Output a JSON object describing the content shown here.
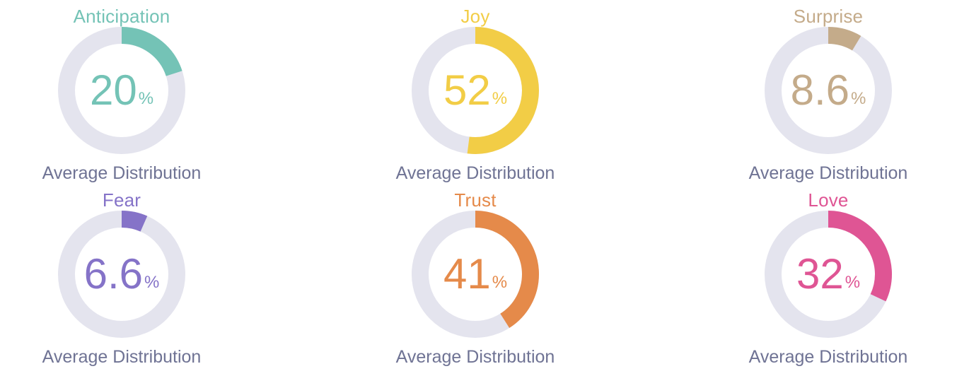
{
  "chart_data": [
    {
      "type": "pie",
      "title": "Anticipation",
      "value": 20,
      "display": "20",
      "unit": "%",
      "color": "#74c3b6",
      "caption": "Average Distribution"
    },
    {
      "type": "pie",
      "title": "Joy",
      "value": 52,
      "display": "52",
      "unit": "%",
      "color": "#f2cd46",
      "caption": "Average Distribution"
    },
    {
      "type": "pie",
      "title": "Surprise",
      "value": 8.6,
      "display": "8.6",
      "unit": "%",
      "color": "#c4ab8a",
      "caption": "Average Distribution"
    },
    {
      "type": "pie",
      "title": "Fear",
      "value": 6.6,
      "display": "6.6",
      "unit": "%",
      "color": "#8573c8",
      "caption": "Average Distribution"
    },
    {
      "type": "pie",
      "title": "Trust",
      "value": 41,
      "display": "41",
      "unit": "%",
      "color": "#e58a4a",
      "caption": "Average Distribution"
    },
    {
      "type": "pie",
      "title": "Love",
      "value": 32,
      "display": "32",
      "unit": "%",
      "color": "#df5594",
      "caption": "Average Distribution"
    }
  ],
  "track_color": "#e4e4ee",
  "caption_color": "#6f7394"
}
